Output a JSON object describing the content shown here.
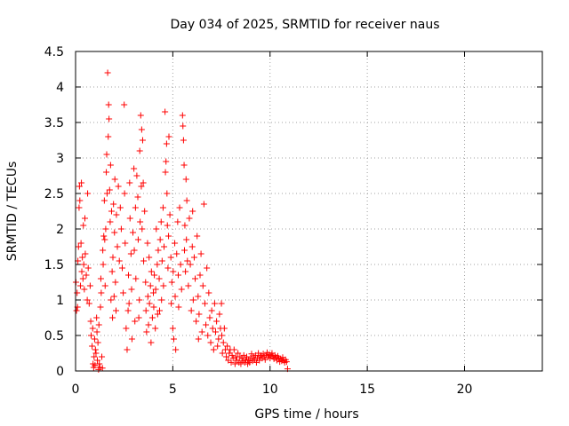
{
  "chart_data": {
    "type": "scatter",
    "title": "Day 034 of 2025, SRMTID for receiver naus",
    "xlabel": "GPS time / hours",
    "ylabel": "SRMTID / TECUs",
    "xlim": [
      0,
      24
    ],
    "ylim": [
      0,
      4.5
    ],
    "xticks": [
      0,
      5,
      10,
      15,
      20
    ],
    "yticks": [
      0,
      0.5,
      1,
      1.5,
      2,
      2.5,
      3,
      3.5,
      4,
      4.5
    ],
    "xtick_labels": [
      "0",
      "5",
      "10",
      "15",
      "20"
    ],
    "ytick_labels": [
      "0",
      "0.5",
      "1",
      "1.5",
      "2",
      "2.5",
      "3",
      "3.5",
      "4",
      "4.5"
    ],
    "grid": true,
    "marker": "+",
    "marker_color": "#ff0000",
    "series": [
      {
        "name": "SRMTID",
        "points": [
          [
            0.02,
            1.25
          ],
          [
            0.05,
            0.85
          ],
          [
            0.08,
            1.1
          ],
          [
            0.1,
            0.9
          ],
          [
            0.12,
            1.55
          ],
          [
            0.15,
            1.75
          ],
          [
            0.18,
            2.3
          ],
          [
            0.2,
            2.6
          ],
          [
            0.22,
            2.4
          ],
          [
            0.25,
            1.2
          ],
          [
            0.28,
            1.8
          ],
          [
            0.3,
            2.65
          ],
          [
            0.32,
            1.4
          ],
          [
            0.35,
            1.6
          ],
          [
            0.38,
            1.3
          ],
          [
            0.4,
            2.05
          ],
          [
            0.42,
            1.5
          ],
          [
            0.45,
            1.15
          ],
          [
            0.48,
            2.15
          ],
          [
            0.5,
            1.65
          ],
          [
            0.55,
            1.35
          ],
          [
            0.6,
            1.0
          ],
          [
            0.62,
            2.5
          ],
          [
            0.65,
            1.45
          ],
          [
            0.7,
            0.95
          ],
          [
            0.75,
            1.2
          ],
          [
            0.78,
            0.7
          ],
          [
            0.8,
            0.5
          ],
          [
            0.85,
            0.35
          ],
          [
            0.88,
            0.6
          ],
          [
            0.9,
            0.1
          ],
          [
            0.93,
            0.05
          ],
          [
            0.95,
            0.2
          ],
          [
            0.98,
            0.45
          ],
          [
            1.0,
            0.08
          ],
          [
            1.02,
            0.3
          ],
          [
            1.05,
            0.25
          ],
          [
            1.08,
            0.75
          ],
          [
            1.1,
            0.55
          ],
          [
            1.12,
            0.15
          ],
          [
            1.15,
            0.4
          ],
          [
            1.18,
            0.02
          ],
          [
            1.2,
            0.65
          ],
          [
            1.22,
            0.1
          ],
          [
            1.25,
            0.05
          ],
          [
            1.28,
            0.9
          ],
          [
            1.3,
            1.3
          ],
          [
            1.32,
            1.1
          ],
          [
            1.35,
            0.2
          ],
          [
            1.38,
            0.04
          ],
          [
            1.4,
            1.7
          ],
          [
            1.42,
            1.5
          ],
          [
            1.45,
            1.9
          ],
          [
            1.48,
            2.4
          ],
          [
            1.5,
            1.85
          ],
          [
            1.52,
            1.2
          ],
          [
            1.55,
            2.0
          ],
          [
            1.58,
            2.8
          ],
          [
            1.6,
            3.05
          ],
          [
            1.62,
            2.5
          ],
          [
            1.65,
            4.2
          ],
          [
            1.68,
            3.3
          ],
          [
            1.7,
            3.75
          ],
          [
            1.72,
            3.55
          ],
          [
            1.75,
            2.55
          ],
          [
            1.78,
            2.1
          ],
          [
            1.8,
            2.9
          ],
          [
            1.82,
            1.0
          ],
          [
            1.85,
            2.25
          ],
          [
            1.88,
            1.4
          ],
          [
            1.9,
            0.75
          ],
          [
            1.92,
            1.6
          ],
          [
            1.95,
            2.35
          ],
          [
            1.98,
            1.05
          ],
          [
            2.0,
            1.95
          ],
          [
            2.02,
            2.7
          ],
          [
            2.05,
            1.25
          ],
          [
            2.08,
            0.85
          ],
          [
            2.1,
            2.2
          ],
          [
            2.15,
            1.75
          ],
          [
            2.2,
            2.6
          ],
          [
            2.25,
            1.55
          ],
          [
            2.3,
            2.3
          ],
          [
            2.35,
            2.0
          ],
          [
            2.4,
            1.45
          ],
          [
            2.45,
            1.1
          ],
          [
            2.5,
            3.75
          ],
          [
            2.52,
            2.5
          ],
          [
            2.55,
            1.8
          ],
          [
            2.6,
            0.6
          ],
          [
            2.65,
            0.3
          ],
          [
            2.7,
            0.85
          ],
          [
            2.72,
            1.35
          ],
          [
            2.75,
            0.95
          ],
          [
            2.78,
            2.65
          ],
          [
            2.8,
            2.15
          ],
          [
            2.85,
            1.65
          ],
          [
            2.88,
            1.15
          ],
          [
            2.9,
            0.45
          ],
          [
            2.95,
            1.95
          ],
          [
            3.0,
            2.85
          ],
          [
            3.02,
            1.7
          ],
          [
            3.05,
            0.7
          ],
          [
            3.08,
            2.3
          ],
          [
            3.1,
            1.3
          ],
          [
            3.15,
            2.75
          ],
          [
            3.2,
            2.45
          ],
          [
            3.22,
            1.85
          ],
          [
            3.25,
            0.75
          ],
          [
            3.28,
            1.0
          ],
          [
            3.3,
            3.1
          ],
          [
            3.32,
            2.1
          ],
          [
            3.35,
            3.6
          ],
          [
            3.38,
            2.6
          ],
          [
            3.4,
            3.4
          ],
          [
            3.42,
            2.0
          ],
          [
            3.45,
            3.25
          ],
          [
            3.48,
            2.65
          ],
          [
            3.5,
            1.55
          ],
          [
            3.55,
            2.25
          ],
          [
            3.6,
            1.25
          ],
          [
            3.62,
            0.85
          ],
          [
            3.65,
            0.55
          ],
          [
            3.7,
            1.8
          ],
          [
            3.72,
            1.05
          ],
          [
            3.75,
            0.65
          ],
          [
            3.78,
            1.6
          ],
          [
            3.8,
            0.95
          ],
          [
            3.85,
            1.2
          ],
          [
            3.88,
            0.4
          ],
          [
            3.9,
            1.4
          ],
          [
            3.95,
            0.75
          ],
          [
            4.0,
            1.1
          ],
          [
            4.02,
            0.9
          ],
          [
            4.05,
            1.35
          ],
          [
            4.1,
            0.6
          ],
          [
            4.12,
            1.15
          ],
          [
            4.15,
            2.0
          ],
          [
            4.2,
            1.5
          ],
          [
            4.22,
            0.8
          ],
          [
            4.25,
            1.7
          ],
          [
            4.3,
            1.3
          ],
          [
            4.32,
            0.85
          ],
          [
            4.35,
            1.85
          ],
          [
            4.4,
            2.1
          ],
          [
            4.42,
            1.0
          ],
          [
            4.45,
            1.55
          ],
          [
            4.5,
            2.3
          ],
          [
            4.52,
            1.2
          ],
          [
            4.55,
            1.75
          ],
          [
            4.6,
            3.65
          ],
          [
            4.62,
            2.8
          ],
          [
            4.65,
            2.95
          ],
          [
            4.68,
            3.2
          ],
          [
            4.7,
            2.5
          ],
          [
            4.72,
            2.05
          ],
          [
            4.75,
            1.45
          ],
          [
            4.78,
            1.9
          ],
          [
            4.8,
            3.3
          ],
          [
            4.85,
            2.2
          ],
          [
            4.9,
            1.6
          ],
          [
            4.92,
            0.95
          ],
          [
            4.95,
            1.25
          ],
          [
            5.0,
            0.6
          ],
          [
            5.02,
            1.4
          ],
          [
            5.05,
            0.45
          ],
          [
            5.1,
            1.8
          ],
          [
            5.12,
            1.05
          ],
          [
            5.15,
            0.3
          ],
          [
            5.2,
            1.65
          ],
          [
            5.25,
            2.1
          ],
          [
            5.28,
            1.35
          ],
          [
            5.3,
            0.9
          ],
          [
            5.35,
            2.3
          ],
          [
            5.4,
            1.5
          ],
          [
            5.45,
            1.15
          ],
          [
            5.5,
            3.6
          ],
          [
            5.52,
            3.45
          ],
          [
            5.55,
            3.25
          ],
          [
            5.58,
            2.9
          ],
          [
            5.6,
            1.7
          ],
          [
            5.62,
            2.05
          ],
          [
            5.65,
            1.4
          ],
          [
            5.68,
            2.7
          ],
          [
            5.7,
            1.85
          ],
          [
            5.72,
            2.4
          ],
          [
            5.75,
            1.55
          ],
          [
            5.8,
            1.2
          ],
          [
            5.85,
            2.15
          ],
          [
            5.9,
            1.5
          ],
          [
            5.95,
            0.85
          ],
          [
            6.0,
            1.75
          ],
          [
            6.02,
            2.25
          ],
          [
            6.05,
            1.0
          ],
          [
            6.1,
            1.6
          ],
          [
            6.15,
            1.3
          ],
          [
            6.2,
            0.7
          ],
          [
            6.25,
            1.9
          ],
          [
            6.3,
            1.05
          ],
          [
            6.32,
            0.45
          ],
          [
            6.35,
            0.8
          ],
          [
            6.4,
            1.35
          ],
          [
            6.45,
            1.65
          ],
          [
            6.5,
            0.55
          ],
          [
            6.55,
            1.2
          ],
          [
            6.6,
            2.35
          ],
          [
            6.65,
            0.95
          ],
          [
            6.7,
            0.65
          ],
          [
            6.75,
            1.45
          ],
          [
            6.8,
            0.5
          ],
          [
            6.85,
            1.1
          ],
          [
            6.9,
            0.75
          ],
          [
            6.95,
            0.4
          ],
          [
            7.0,
            0.85
          ],
          [
            7.05,
            0.6
          ],
          [
            7.1,
            0.3
          ],
          [
            7.15,
            0.95
          ],
          [
            7.2,
            0.55
          ],
          [
            7.25,
            0.7
          ],
          [
            7.3,
            0.35
          ],
          [
            7.35,
            0.45
          ],
          [
            7.4,
            0.8
          ],
          [
            7.45,
            0.6
          ],
          [
            7.5,
            0.95
          ],
          [
            7.52,
            0.5
          ],
          [
            7.55,
            0.25
          ],
          [
            7.6,
            0.4
          ],
          [
            7.65,
            0.6
          ],
          [
            7.7,
            0.3
          ],
          [
            7.75,
            0.2
          ],
          [
            7.8,
            0.35
          ],
          [
            7.85,
            0.15
          ],
          [
            7.9,
            0.25
          ],
          [
            7.95,
            0.3
          ],
          [
            8.0,
            0.12
          ],
          [
            8.05,
            0.22
          ],
          [
            8.1,
            0.18
          ],
          [
            8.15,
            0.3
          ],
          [
            8.2,
            0.1
          ],
          [
            8.25,
            0.2
          ],
          [
            8.3,
            0.15
          ],
          [
            8.35,
            0.25
          ],
          [
            8.4,
            0.12
          ],
          [
            8.45,
            0.2
          ],
          [
            8.5,
            0.1
          ],
          [
            8.55,
            0.18
          ],
          [
            8.6,
            0.14
          ],
          [
            8.65,
            0.22
          ],
          [
            8.7,
            0.12
          ],
          [
            8.75,
            0.16
          ],
          [
            8.8,
            0.2
          ],
          [
            8.85,
            0.1
          ],
          [
            8.9,
            0.15
          ],
          [
            8.95,
            0.12
          ],
          [
            9.0,
            0.18
          ],
          [
            9.05,
            0.24
          ],
          [
            9.1,
            0.14
          ],
          [
            9.15,
            0.2
          ],
          [
            9.2,
            0.16
          ],
          [
            9.25,
            0.22
          ],
          [
            9.3,
            0.12
          ],
          [
            9.35,
            0.18
          ],
          [
            9.4,
            0.25
          ],
          [
            9.45,
            0.15
          ],
          [
            9.5,
            0.2
          ],
          [
            9.55,
            0.22
          ],
          [
            9.6,
            0.18
          ],
          [
            9.65,
            0.24
          ],
          [
            9.7,
            0.2
          ],
          [
            9.75,
            0.16
          ],
          [
            9.8,
            0.22
          ],
          [
            9.85,
            0.26
          ],
          [
            9.9,
            0.2
          ],
          [
            9.95,
            0.23
          ],
          [
            10.0,
            0.18
          ],
          [
            10.05,
            0.22
          ],
          [
            10.1,
            0.25
          ],
          [
            10.15,
            0.2
          ],
          [
            10.2,
            0.17
          ],
          [
            10.25,
            0.22
          ],
          [
            10.3,
            0.19
          ],
          [
            10.35,
            0.15
          ],
          [
            10.4,
            0.21
          ],
          [
            10.45,
            0.18
          ],
          [
            10.5,
            0.13
          ],
          [
            10.55,
            0.17
          ],
          [
            10.6,
            0.14
          ],
          [
            10.65,
            0.19
          ],
          [
            10.7,
            0.15
          ],
          [
            10.75,
            0.12
          ],
          [
            10.8,
            0.16
          ],
          [
            10.85,
            0.13
          ],
          [
            10.9,
            0.03
          ]
        ]
      }
    ]
  }
}
